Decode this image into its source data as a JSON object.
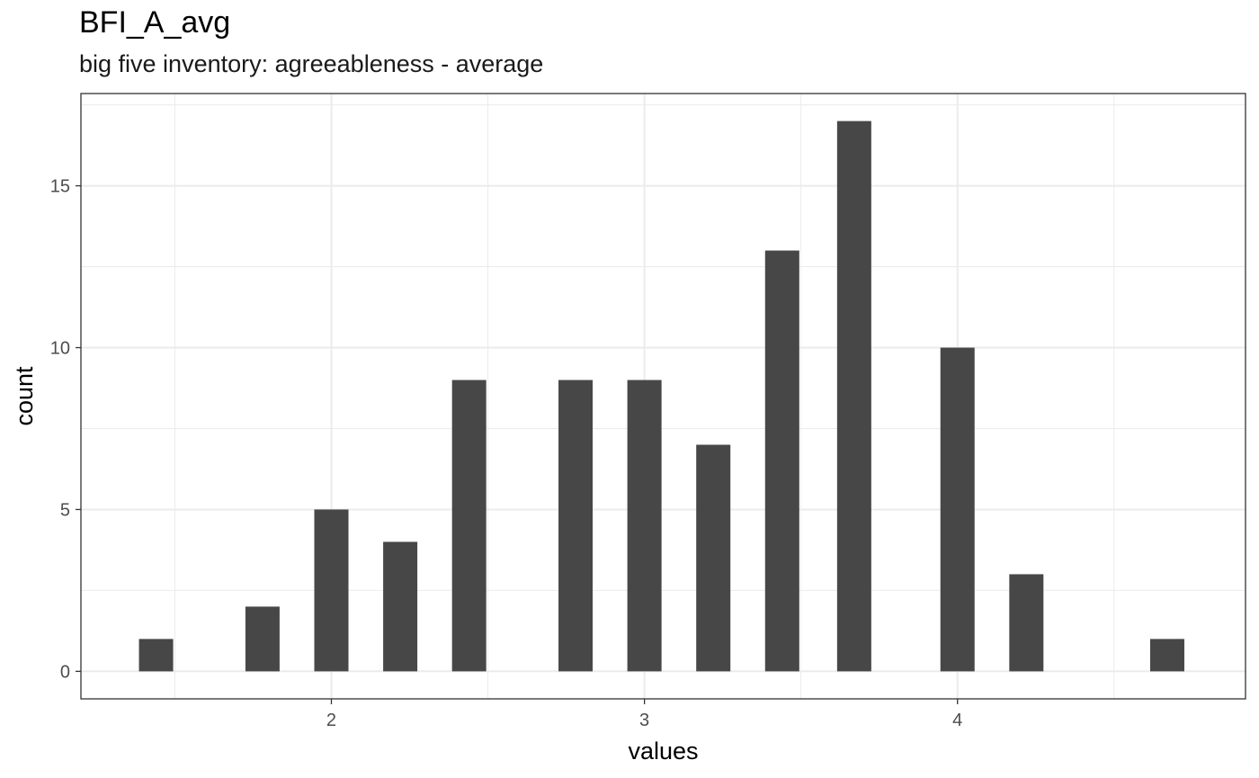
{
  "chart_data": {
    "type": "bar",
    "title": "BFI_A_avg",
    "subtitle": "big five inventory: agreeableness - average",
    "xlabel": "values",
    "ylabel": "count",
    "x": [
      1.44,
      1.78,
      2.0,
      2.22,
      2.44,
      2.78,
      3.0,
      3.22,
      3.44,
      3.67,
      4.0,
      4.22,
      4.67
    ],
    "values": [
      1,
      2,
      5,
      4,
      9,
      9,
      9,
      7,
      13,
      17,
      10,
      3,
      1
    ],
    "xlim": [
      1.2,
      4.92
    ],
    "ylim": [
      -0.85,
      17.85
    ],
    "x_ticks": [
      2,
      3,
      4
    ],
    "x_tick_labels": [
      "2",
      "3",
      "4"
    ],
    "y_ticks": [
      0,
      5,
      10,
      15
    ],
    "y_tick_labels": [
      "0",
      "5",
      "10",
      "15"
    ],
    "grid": true,
    "bar_color": "#474747",
    "panel_border_color": "#333333",
    "grid_color": "#ebebeb"
  }
}
